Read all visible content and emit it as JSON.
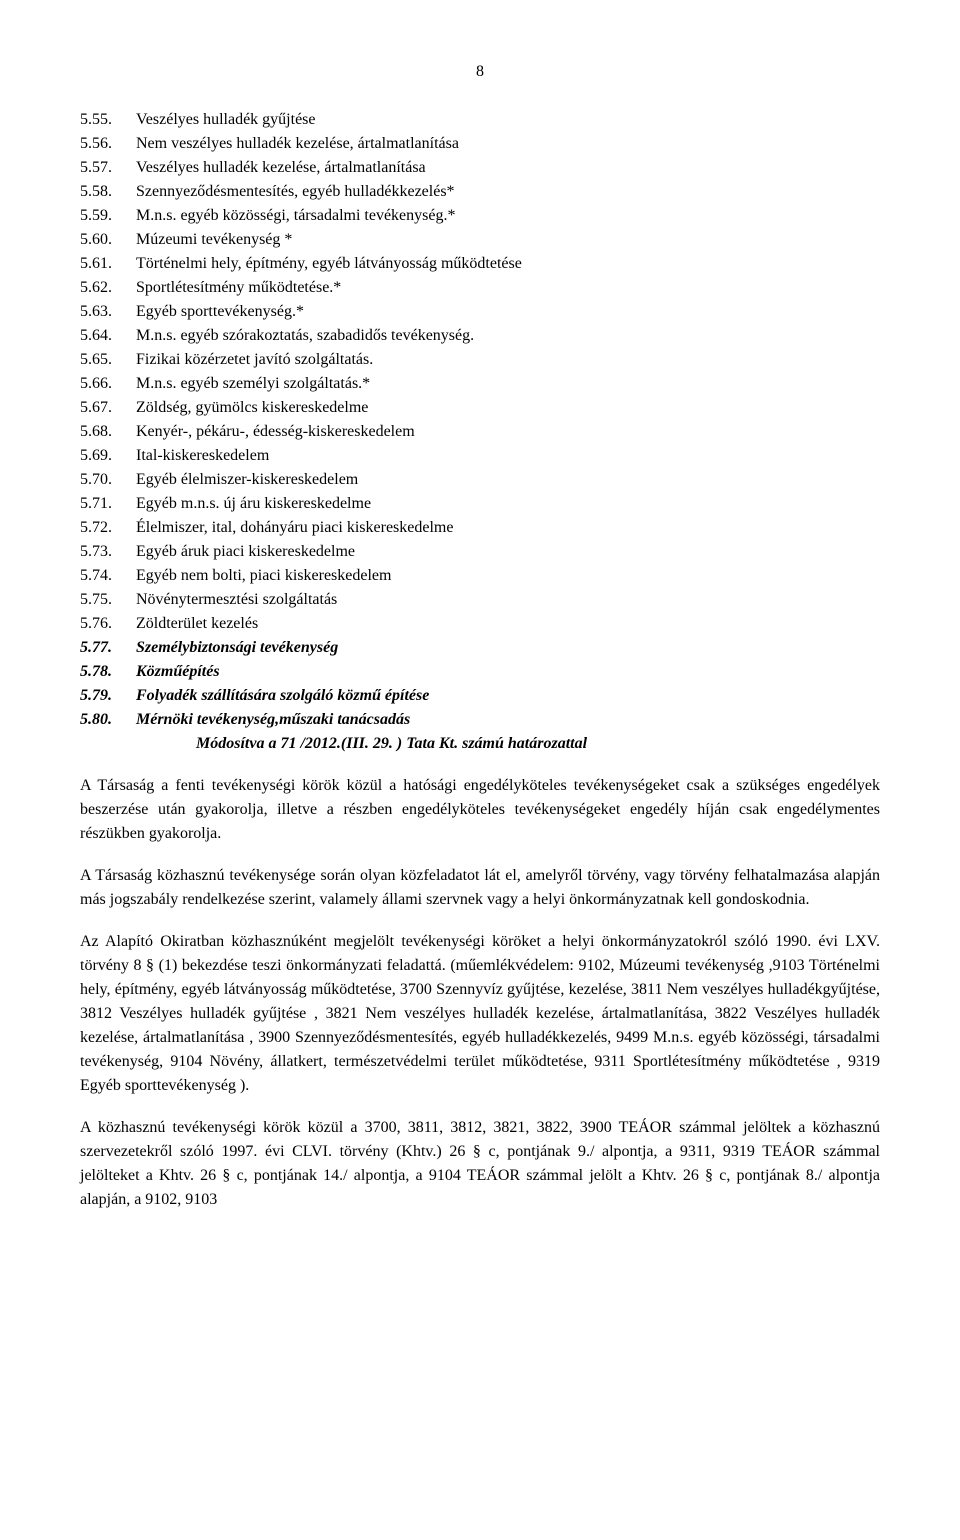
{
  "pageNumber": "8",
  "items": [
    {
      "num": "5.55.",
      "text": "Veszélyes hulladék gyűjtése",
      "emph": false
    },
    {
      "num": "5.56.",
      "text": "Nem veszélyes hulladék kezelése, ártalmatlanítása",
      "emph": false
    },
    {
      "num": "5.57.",
      "text": "Veszélyes hulladék kezelése, ártalmatlanítása",
      "emph": false
    },
    {
      "num": "5.58.",
      "text": "Szennyeződésmentesítés, egyéb hulladékkezelés*",
      "emph": false
    },
    {
      "num": "5.59.",
      "text": "M.n.s. egyéb közösségi, társadalmi tevékenység.*",
      "emph": false
    },
    {
      "num": "5.60.",
      "text": "Múzeumi tevékenység *",
      "emph": false
    },
    {
      "num": "5.61.",
      "text": "Történelmi hely, építmény, egyéb látványosság működtetése",
      "emph": false
    },
    {
      "num": "5.62.",
      "text": "Sportlétesítmény működtetése.*",
      "emph": false
    },
    {
      "num": "5.63.",
      "text": "Egyéb sporttevékenység.*",
      "emph": false
    },
    {
      "num": "5.64.",
      "text": "M.n.s. egyéb szórakoztatás,  szabadidős tevékenység.",
      "emph": false
    },
    {
      "num": "5.65.",
      "text": "Fizikai közérzetet javító szolgáltatás.",
      "emph": false
    },
    {
      "num": "5.66.",
      "text": "M.n.s. egyéb személyi szolgáltatás.*",
      "emph": false
    },
    {
      "num": "5.67.",
      "text": "Zöldség, gyümölcs kiskereskedelme",
      "emph": false
    },
    {
      "num": "5.68.",
      "text": "Kenyér-, pékáru-, édesség-kiskereskedelem",
      "emph": false
    },
    {
      "num": "5.69.",
      "text": "Ital-kiskereskedelem",
      "emph": false
    },
    {
      "num": "5.70.",
      "text": "Egyéb élelmiszer-kiskereskedelem",
      "emph": false
    },
    {
      "num": "5.71.",
      "text": "Egyéb m.n.s. új áru kiskereskedelme",
      "emph": false
    },
    {
      "num": "5.72.",
      "text": "Élelmiszer, ital, dohányáru piaci kiskereskedelme",
      "emph": false
    },
    {
      "num": "5.73.",
      "text": "Egyéb áruk piaci kiskereskedelme",
      "emph": false
    },
    {
      "num": "5.74.",
      "text": "Egyéb nem bolti, piaci kiskereskedelem",
      "emph": false
    },
    {
      "num": "5.75.",
      "text": "Növénytermesztési szolgáltatás",
      "emph": false
    },
    {
      "num": "5.76.",
      "text": "Zöldterület kezelés",
      "emph": false
    },
    {
      "num": "5.77.",
      "text": "Személybiztonsági tevékenység",
      "emph": true
    },
    {
      "num": "5.78.",
      "text": "Közműépítés",
      "emph": true
    },
    {
      "num": "5.79.",
      "text": "Folyadék szállítására szolgáló közmű építése",
      "emph": true
    },
    {
      "num": "5.80.",
      "text": "Mérnöki tevékenység,műszaki tanácsadás",
      "emph": true
    }
  ],
  "modLine": "Módosítva  a     71 /2012.(III. 29. ) Tata Kt.  számú határozattal",
  "paragraphs": [
    "A Társaság a fenti tevékenységi körök közül a hatósági engedélyköteles tevékenységeket csak a szükséges engedélyek beszerzése után gyakorolja, illetve a részben engedélyköteles tevékenységeket engedély híján csak engedélymentes részükben gyakorolja.",
    "A Társaság közhasznú tevékenysége során olyan közfeladatot lát el, amelyről törvény, vagy törvény felhatalmazása alapján más jogszabály rendelkezése szerint, valamely állami szervnek vagy a helyi önkormányzatnak kell gondoskodnia.",
    "Az Alapító Okiratban közhasznúként megjelölt tevékenységi köröket a helyi önkormányzatokról szóló 1990. évi LXV. törvény 8 § (1) bekezdése teszi önkormányzati feladattá. (műemlékvédelem: 9102, Múzeumi tevékenység ,9103 Történelmi hely, építmény, egyéb látványosság működtetése,  3700 Szennyvíz gyűjtése, kezelése,  3811 Nem veszélyes hulladékgyűjtése,   3812 Veszélyes hulladék gyűjtése , 3821 Nem veszélyes hulladék kezelése, ártalmatlanítása, 3822 Veszélyes hulladék kezelése, ártalmatlanítása , 3900 Szennyeződésmentesítés, egyéb  hulladékkezelés, 9499  M.n.s. egyéb közösségi, társadalmi tevékenység,  9104  Növény, állatkert, természetvédelmi terület működtetése,  9311 Sportlétesítmény működtetése  , 9319 Egyéb sporttevékenység ).",
    "A közhasznú tevékenységi körök közül a 3700, 3811, 3812, 3821, 3822, 3900 TEÁOR számmal jelöltek a közhasznú szervezetekről szóló 1997. évi CLVI. törvény (Khtv.) 26 § c, pontjának 9./ alpontja, a 9311, 9319 TEÁOR számmal jelölteket a Khtv.  26 § c, pontjának 14./ alpontja, a 9104 TEÁOR számmal jelölt a Khtv.  26 § c, pontjának 8./ alpontja alapján, a 9102, 9103"
  ]
}
